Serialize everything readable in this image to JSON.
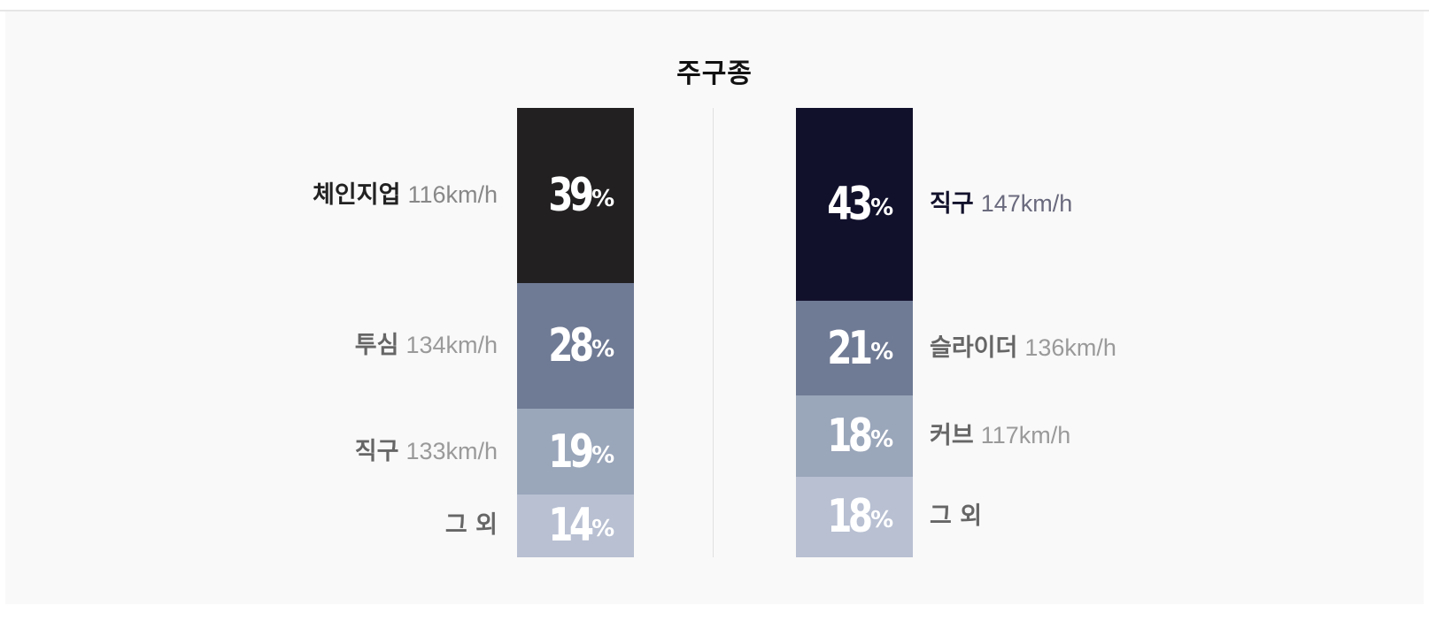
{
  "chart_data": {
    "type": "bar",
    "title": "주구종",
    "percent_symbol": "%",
    "series": [
      {
        "segments": [
          {
            "name": "체인지업",
            "speed": "116km/h",
            "value": 39,
            "color": "#222021",
            "name_color": "#222222",
            "speed_color": "#888888"
          },
          {
            "name": "투심",
            "speed": "134km/h",
            "value": 28,
            "color": "#6f7a94",
            "name_color": "#666666",
            "speed_color": "#9a9a9a"
          },
          {
            "name": "직구",
            "speed": "133km/h",
            "value": 19,
            "color": "#9aa6ba",
            "name_color": "#666666",
            "speed_color": "#9a9a9a"
          },
          {
            "name": "그 외",
            "speed": "",
            "value": 14,
            "color": "#b8c0d2",
            "name_color": "#666666",
            "speed_color": "#9a9a9a"
          }
        ]
      },
      {
        "segments": [
          {
            "name": "직구",
            "speed": "147km/h",
            "value": 43,
            "color": "#12112c",
            "name_color": "#12112c",
            "speed_color": "#6a6a7e"
          },
          {
            "name": "슬라이더",
            "speed": "136km/h",
            "value": 21,
            "color": "#6f7a94",
            "name_color": "#666666",
            "speed_color": "#9a9a9a"
          },
          {
            "name": "커브",
            "speed": "117km/h",
            "value": 18,
            "color": "#9aa6ba",
            "name_color": "#666666",
            "speed_color": "#9a9a9a"
          },
          {
            "name": "그 외",
            "speed": "",
            "value": 18,
            "color": "#b8c0d2",
            "name_color": "#666666",
            "speed_color": "#9a9a9a"
          }
        ]
      }
    ]
  }
}
